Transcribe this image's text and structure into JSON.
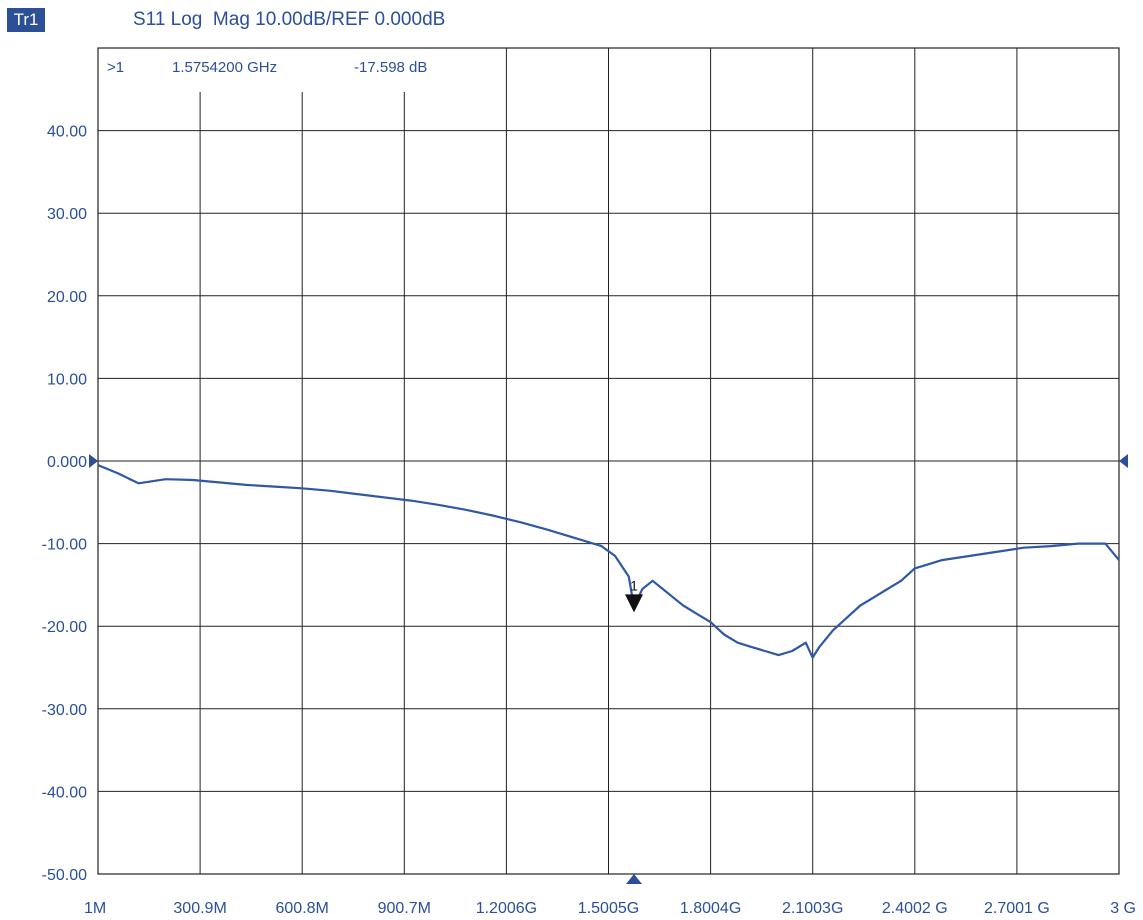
{
  "header": {
    "trace_label": "Tr1",
    "title": "S11 Log  Mag 10.00dB/REF 0.000dB"
  },
  "marker_readout": {
    "id": ">1",
    "frequency": "1.5754200 GHz",
    "value": "-17.598 dB"
  },
  "colors": {
    "trace": "#2f58a6",
    "text": "#2b4f9a",
    "grid": "#222222",
    "marker": "#111111"
  },
  "chart_data": {
    "type": "line",
    "title": "S11 Log  Mag 10.00dB/REF 0.000dB",
    "xlabel": "",
    "ylabel": "",
    "x_unit": "Hz",
    "xlim": [
      1000000,
      3000000000
    ],
    "ylim": [
      -50,
      50
    ],
    "reference_level": 0,
    "scale_per_div": 10,
    "grid": true,
    "y_ticks": [
      {
        "value": 40,
        "label": "40.00"
      },
      {
        "value": 30,
        "label": "30.00"
      },
      {
        "value": 20,
        "label": "20.00"
      },
      {
        "value": 10,
        "label": "10.00"
      },
      {
        "value": 0,
        "label": "0.000"
      },
      {
        "value": -10,
        "label": "-10.00"
      },
      {
        "value": -20,
        "label": "-20.00"
      },
      {
        "value": -30,
        "label": "-30.00"
      },
      {
        "value": -40,
        "label": "-40.00"
      },
      {
        "value": -50,
        "label": "-50.00"
      }
    ],
    "x_ticks": [
      {
        "value": 1000000,
        "label": "1M"
      },
      {
        "value": 300900000,
        "label": "300.9M"
      },
      {
        "value": 600800000,
        "label": "600.8M"
      },
      {
        "value": 900700000,
        "label": "900.7M"
      },
      {
        "value": 1200600000,
        "label": "1.2006G"
      },
      {
        "value": 1500500000,
        "label": "1.5005G"
      },
      {
        "value": 1800400000,
        "label": "1.8004G"
      },
      {
        "value": 2100300000,
        "label": "2.1003G"
      },
      {
        "value": 2400200000,
        "label": "2.4002 G"
      },
      {
        "value": 2700100000,
        "label": "2.7001 G"
      },
      {
        "value": 3000000000,
        "label": "3 G"
      }
    ],
    "marker": {
      "label": "1",
      "x": 1575420000,
      "y": -17.598
    },
    "series": [
      {
        "x": [
          1000000,
          60000000,
          120000000,
          200000000,
          280000000,
          360000000,
          440000000,
          520000000,
          600000000,
          680000000,
          760000000,
          840000000,
          920000000,
          1000000000,
          1080000000,
          1160000000,
          1240000000,
          1320000000,
          1400000000,
          1480000000,
          1520000000,
          1560000000,
          1575000000,
          1600000000,
          1630000000,
          1660000000,
          1690000000,
          1720000000,
          1760000000,
          1800000000,
          1840000000,
          1880000000,
          1920000000,
          1960000000,
          2000000000,
          2040000000,
          2080000000,
          2100000000,
          2120000000,
          2160000000,
          2200000000,
          2240000000,
          2280000000,
          2320000000,
          2360000000,
          2400000000,
          2440000000,
          2480000000,
          2560000000,
          2640000000,
          2720000000,
          2800000000,
          2880000000,
          2960000000,
          3000000000
        ],
        "values": [
          -0.5,
          -1.5,
          -2.7,
          -2.2,
          -2.3,
          -2.6,
          -2.9,
          -3.1,
          -3.3,
          -3.6,
          -4.0,
          -4.4,
          -4.8,
          -5.3,
          -5.9,
          -6.6,
          -7.4,
          -8.3,
          -9.3,
          -10.3,
          -11.5,
          -14.0,
          -17.6,
          -15.5,
          -14.5,
          -15.5,
          -16.5,
          -17.5,
          -18.5,
          -19.5,
          -21.0,
          -22.0,
          -22.5,
          -23.0,
          -23.5,
          -23.0,
          -22.0,
          -23.8,
          -22.5,
          -20.5,
          -19.0,
          -17.5,
          -16.5,
          -15.5,
          -14.5,
          -13.0,
          -12.5,
          -12.0,
          -11.5,
          -11.0,
          -10.5,
          -10.3,
          -10.0,
          -10.0,
          -12.0
        ]
      }
    ]
  }
}
